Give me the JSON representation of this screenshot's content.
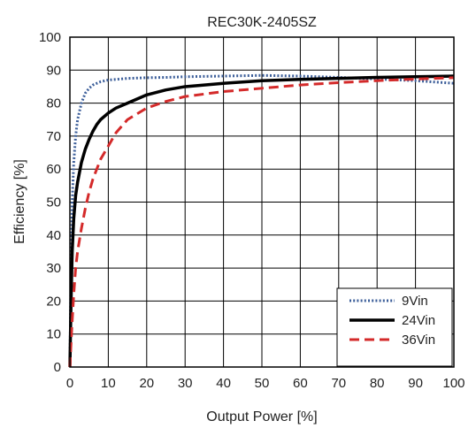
{
  "chart_data": {
    "type": "line",
    "title": "REC30K-2405SZ",
    "xlabel": "Output Power [%]",
    "ylabel": "Efficiency [%]",
    "xlim": [
      0,
      100
    ],
    "ylim": [
      0,
      100
    ],
    "xticks": [
      0,
      10,
      20,
      30,
      40,
      50,
      60,
      70,
      80,
      90,
      100
    ],
    "yticks": [
      0,
      10,
      20,
      30,
      40,
      50,
      60,
      70,
      80,
      90,
      100
    ],
    "grid": true,
    "legend_position": "bottom-right",
    "series": [
      {
        "name": "9Vin",
        "color": "#3d5f9a",
        "style": "dotted",
        "x": [
          0,
          0.3,
          0.6,
          1,
          1.5,
          2,
          3,
          4,
          5,
          6,
          8,
          10,
          15,
          20,
          25,
          30,
          40,
          50,
          60,
          70,
          80,
          90,
          95,
          100
        ],
        "y": [
          0,
          30,
          50,
          62,
          70,
          75,
          80,
          83,
          84.5,
          85.5,
          86.5,
          87,
          87.5,
          87.7,
          87.8,
          88,
          88.2,
          88.4,
          88.2,
          87.8,
          87.3,
          86.8,
          86.4,
          86
        ]
      },
      {
        "name": "24Vin",
        "color": "#000000",
        "style": "solid",
        "x": [
          0,
          0.3,
          0.6,
          1,
          1.5,
          2,
          3,
          4,
          5,
          6,
          7,
          8,
          10,
          12,
          15,
          20,
          25,
          30,
          40,
          50,
          60,
          70,
          80,
          90,
          100
        ],
        "y": [
          0,
          20,
          35,
          45,
          52,
          56,
          62,
          66,
          69,
          71.5,
          73.5,
          75,
          77,
          78.5,
          80,
          82.5,
          84,
          85,
          86,
          86.8,
          87.2,
          87.5,
          87.8,
          88,
          88.2
        ]
      },
      {
        "name": "36Vin",
        "color": "#d42a2a",
        "style": "dashed",
        "x": [
          0,
          0.5,
          1,
          1.5,
          2,
          3,
          4,
          5,
          6,
          8,
          10,
          12,
          15,
          20,
          25,
          30,
          40,
          50,
          60,
          70,
          80,
          90,
          100
        ],
        "y": [
          0,
          12,
          22,
          30,
          35,
          42,
          48,
          53,
          57,
          63,
          67,
          71,
          75,
          78.5,
          80.5,
          82,
          83.5,
          84.5,
          85.5,
          86.2,
          86.8,
          87.3,
          87.7
        ]
      }
    ]
  }
}
